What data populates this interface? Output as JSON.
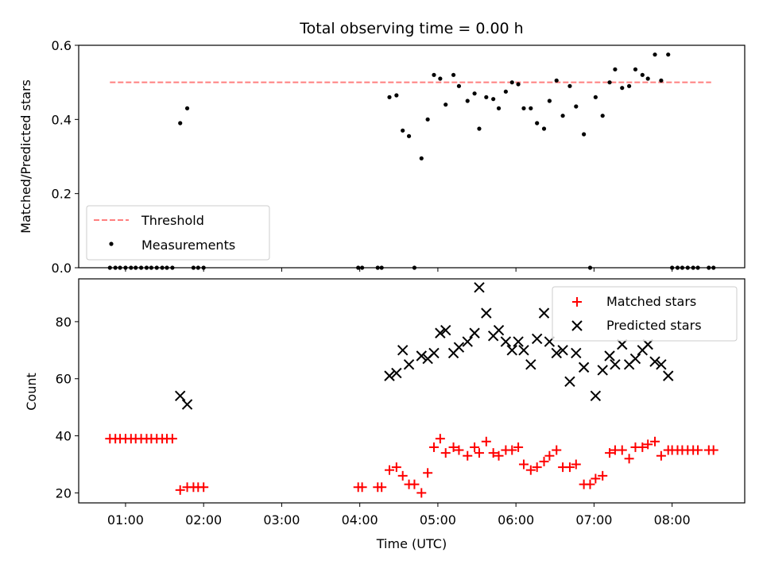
{
  "chart_data": {
    "title": "Total observing time = 0.00 h",
    "xlabel": "Time (UTC)",
    "x_ticks": [
      "01:00",
      "02:00",
      "03:00",
      "04:00",
      "05:00",
      "06:00",
      "07:00",
      "08:00"
    ],
    "x_range_hours": [
      0.4,
      8.93
    ],
    "panels": [
      {
        "type": "scatter",
        "ylabel": "Matched/Predicted stars",
        "ylim": [
          0,
          0.6
        ],
        "y_ticks": [
          "0.0",
          "0.2",
          "0.4",
          "0.6"
        ],
        "threshold": {
          "name": "Threshold",
          "value": 0.5,
          "x": [
            0.8,
            8.5
          ],
          "color": "#ff7f7f"
        },
        "legend_position": "bottom-left",
        "series": [
          {
            "name": "Measurements",
            "color": "#000000",
            "points": [
              [
                0.8,
                0.0
              ],
              [
                0.87,
                0.0
              ],
              [
                0.93,
                0.0
              ],
              [
                1.0,
                0.0
              ],
              [
                1.07,
                0.0
              ],
              [
                1.13,
                0.0
              ],
              [
                1.2,
                0.0
              ],
              [
                1.27,
                0.0
              ],
              [
                1.33,
                0.0
              ],
              [
                1.4,
                0.0
              ],
              [
                1.47,
                0.0
              ],
              [
                1.53,
                0.0
              ],
              [
                1.6,
                0.0
              ],
              [
                1.7,
                0.39
              ],
              [
                1.79,
                0.43
              ],
              [
                1.87,
                0.0
              ],
              [
                1.93,
                0.0
              ],
              [
                2.0,
                0.0
              ],
              [
                3.98,
                0.0
              ],
              [
                4.03,
                0.0
              ],
              [
                4.23,
                0.0
              ],
              [
                4.28,
                0.0
              ],
              [
                4.38,
                0.46
              ],
              [
                4.47,
                0.465
              ],
              [
                4.55,
                0.37
              ],
              [
                4.63,
                0.355
              ],
              [
                4.7,
                0.0
              ],
              [
                4.79,
                0.295
              ],
              [
                4.87,
                0.4
              ],
              [
                4.95,
                0.52
              ],
              [
                5.03,
                0.51
              ],
              [
                5.1,
                0.44
              ],
              [
                5.2,
                0.52
              ],
              [
                5.27,
                0.49
              ],
              [
                5.38,
                0.45
              ],
              [
                5.47,
                0.47
              ],
              [
                5.53,
                0.375
              ],
              [
                5.62,
                0.46
              ],
              [
                5.71,
                0.455
              ],
              [
                5.78,
                0.43
              ],
              [
                5.87,
                0.475
              ],
              [
                5.95,
                0.5
              ],
              [
                6.03,
                0.495
              ],
              [
                6.1,
                0.43
              ],
              [
                6.19,
                0.43
              ],
              [
                6.27,
                0.39
              ],
              [
                6.36,
                0.375
              ],
              [
                6.43,
                0.45
              ],
              [
                6.52,
                0.505
              ],
              [
                6.6,
                0.41
              ],
              [
                6.69,
                0.49
              ],
              [
                6.77,
                0.435
              ],
              [
                6.87,
                0.36
              ],
              [
                6.95,
                0.0
              ],
              [
                7.02,
                0.46
              ],
              [
                7.11,
                0.41
              ],
              [
                7.2,
                0.5
              ],
              [
                7.27,
                0.535
              ],
              [
                7.36,
                0.485
              ],
              [
                7.45,
                0.49
              ],
              [
                7.53,
                0.535
              ],
              [
                7.62,
                0.52
              ],
              [
                7.69,
                0.51
              ],
              [
                7.78,
                0.575
              ],
              [
                7.86,
                0.505
              ],
              [
                7.95,
                0.575
              ],
              [
                8.0,
                0.0
              ],
              [
                8.07,
                0.0
              ],
              [
                8.13,
                0.0
              ],
              [
                8.2,
                0.0
              ],
              [
                8.27,
                0.0
              ],
              [
                8.33,
                0.0
              ],
              [
                8.47,
                0.0
              ],
              [
                8.53,
                0.0
              ]
            ]
          }
        ]
      },
      {
        "type": "scatter",
        "ylabel": "Count",
        "ylim": [
          16.5,
          95
        ],
        "y_ticks": [
          "20",
          "40",
          "60",
          "80"
        ],
        "legend_position": "top-right",
        "series": [
          {
            "name": "Matched stars",
            "color": "#ff0000",
            "marker": "plus",
            "points": [
              [
                0.8,
                39
              ],
              [
                0.87,
                39
              ],
              [
                0.93,
                39
              ],
              [
                1.0,
                39
              ],
              [
                1.07,
                39
              ],
              [
                1.13,
                39
              ],
              [
                1.2,
                39
              ],
              [
                1.27,
                39
              ],
              [
                1.33,
                39
              ],
              [
                1.4,
                39
              ],
              [
                1.47,
                39
              ],
              [
                1.53,
                39
              ],
              [
                1.6,
                39
              ],
              [
                1.7,
                21
              ],
              [
                1.79,
                22
              ],
              [
                1.87,
                22
              ],
              [
                1.93,
                22
              ],
              [
                2.0,
                22
              ],
              [
                3.98,
                22
              ],
              [
                4.03,
                22
              ],
              [
                4.23,
                22
              ],
              [
                4.28,
                22
              ],
              [
                4.38,
                28
              ],
              [
                4.47,
                29
              ],
              [
                4.55,
                26
              ],
              [
                4.63,
                23
              ],
              [
                4.7,
                23
              ],
              [
                4.79,
                20
              ],
              [
                4.87,
                27
              ],
              [
                4.95,
                36
              ],
              [
                5.03,
                39
              ],
              [
                5.1,
                34
              ],
              [
                5.2,
                36
              ],
              [
                5.27,
                35
              ],
              [
                5.38,
                33
              ],
              [
                5.47,
                36
              ],
              [
                5.53,
                34
              ],
              [
                5.62,
                38
              ],
              [
                5.71,
                34
              ],
              [
                5.78,
                33
              ],
              [
                5.87,
                35
              ],
              [
                5.95,
                35
              ],
              [
                6.03,
                36
              ],
              [
                6.1,
                30
              ],
              [
                6.19,
                28
              ],
              [
                6.27,
                29
              ],
              [
                6.36,
                31
              ],
              [
                6.43,
                33
              ],
              [
                6.52,
                35
              ],
              [
                6.6,
                29
              ],
              [
                6.69,
                29
              ],
              [
                6.77,
                30
              ],
              [
                6.87,
                23
              ],
              [
                6.95,
                23
              ],
              [
                7.02,
                25
              ],
              [
                7.11,
                26
              ],
              [
                7.2,
                34
              ],
              [
                7.27,
                35
              ],
              [
                7.36,
                35
              ],
              [
                7.45,
                32
              ],
              [
                7.53,
                36
              ],
              [
                7.62,
                36
              ],
              [
                7.69,
                37
              ],
              [
                7.78,
                38
              ],
              [
                7.86,
                33
              ],
              [
                7.95,
                35
              ],
              [
                8.0,
                35
              ],
              [
                8.07,
                35
              ],
              [
                8.13,
                35
              ],
              [
                8.2,
                35
              ],
              [
                8.27,
                35
              ],
              [
                8.33,
                35
              ],
              [
                8.47,
                35
              ],
              [
                8.53,
                35
              ]
            ]
          },
          {
            "name": "Predicted stars",
            "color": "#000000",
            "marker": "x",
            "points": [
              [
                1.7,
                54
              ],
              [
                1.79,
                51
              ],
              [
                4.38,
                61
              ],
              [
                4.47,
                62
              ],
              [
                4.55,
                70
              ],
              [
                4.63,
                65
              ],
              [
                4.79,
                68
              ],
              [
                4.87,
                67
              ],
              [
                4.95,
                69
              ],
              [
                5.03,
                76
              ],
              [
                5.1,
                77
              ],
              [
                5.2,
                69
              ],
              [
                5.27,
                71
              ],
              [
                5.38,
                73
              ],
              [
                5.47,
                76
              ],
              [
                5.53,
                92
              ],
              [
                5.62,
                83
              ],
              [
                5.71,
                75
              ],
              [
                5.78,
                77
              ],
              [
                5.87,
                73
              ],
              [
                5.95,
                70
              ],
              [
                6.03,
                73
              ],
              [
                6.1,
                70
              ],
              [
                6.19,
                65
              ],
              [
                6.27,
                74
              ],
              [
                6.36,
                83
              ],
              [
                6.43,
                73
              ],
              [
                6.52,
                69
              ],
              [
                6.6,
                70
              ],
              [
                6.69,
                59
              ],
              [
                6.77,
                69
              ],
              [
                6.87,
                64
              ],
              [
                7.02,
                54
              ],
              [
                7.11,
                63
              ],
              [
                7.2,
                68
              ],
              [
                7.27,
                65
              ],
              [
                7.36,
                72
              ],
              [
                7.45,
                65
              ],
              [
                7.53,
                67
              ],
              [
                7.62,
                70
              ],
              [
                7.69,
                72
              ],
              [
                7.78,
                66
              ],
              [
                7.86,
                65
              ],
              [
                7.95,
                61
              ]
            ]
          }
        ]
      }
    ]
  }
}
